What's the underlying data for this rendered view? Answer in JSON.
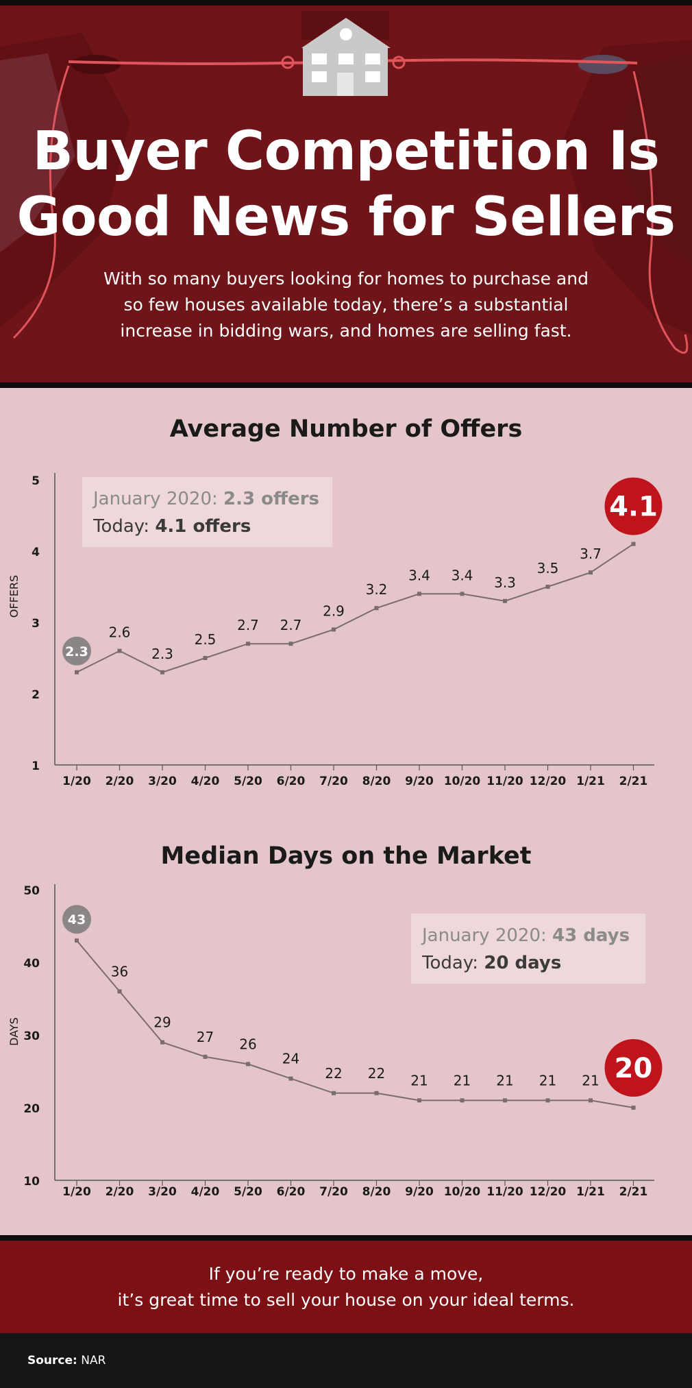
{
  "header": {
    "title_line1": "Buyer Competition Is",
    "title_line2": "Good News for Sellers",
    "subtitle_line1": "With so many buyers looking for homes to purchase and",
    "subtitle_line2": "so few houses available today, there’s a substantial",
    "subtitle_line3": "increase in bidding wars, and homes are selling fast."
  },
  "colors": {
    "hero_bg": "#6f1418",
    "panel_bg": "#e4c5ca",
    "accent_red": "#c0141c",
    "line_gray": "#7a6b6e",
    "badge_gray": "#8c8587",
    "footer_bg": "#7c1015"
  },
  "chart_data": [
    {
      "type": "line",
      "title": "Average Number of Offers",
      "ylabel": "OFFERS",
      "xlabel": "",
      "categories": [
        "1/20",
        "2/20",
        "3/20",
        "4/20",
        "5/20",
        "6/20",
        "7/20",
        "8/20",
        "9/20",
        "10/20",
        "11/20",
        "12/20",
        "1/21",
        "2/21"
      ],
      "values": [
        2.3,
        2.6,
        2.3,
        2.5,
        2.7,
        2.7,
        2.9,
        3.2,
        3.4,
        3.4,
        3.3,
        3.5,
        3.7,
        4.1
      ],
      "data_labels": [
        "2.3",
        "2.6",
        "2.3",
        "2.5",
        "2.7",
        "2.7",
        "2.9",
        "3.2",
        "3.4",
        "3.4",
        "3.3",
        "3.5",
        "3.7",
        "4.1"
      ],
      "ylim": [
        1,
        5
      ],
      "yticks": [
        1,
        2,
        3,
        4,
        5
      ],
      "grid": false,
      "callout": {
        "line1_label": "January 2020: ",
        "line1_value": "2.3 offers",
        "line2_label": "Today: ",
        "line2_value": "4.1 offers",
        "placement": "top-left"
      }
    },
    {
      "type": "line",
      "title": "Median Days on the Market",
      "ylabel": "DAYS",
      "xlabel": "",
      "categories": [
        "1/20",
        "2/20",
        "3/20",
        "4/20",
        "5/20",
        "6/20",
        "7/20",
        "8/20",
        "9/20",
        "10/20",
        "11/20",
        "12/20",
        "1/21",
        "2/21"
      ],
      "values": [
        43,
        36,
        29,
        27,
        26,
        24,
        22,
        22,
        21,
        21,
        21,
        21,
        21,
        20
      ],
      "data_labels": [
        "43",
        "36",
        "29",
        "27",
        "26",
        "24",
        "22",
        "22",
        "21",
        "21",
        "21",
        "21",
        "21",
        "20"
      ],
      "ylim": [
        10,
        50
      ],
      "yticks": [
        10,
        20,
        30,
        40,
        50
      ],
      "grid": false,
      "callout": {
        "line1_label": "January 2020: ",
        "line1_value": "43 days",
        "line2_label": "Today: ",
        "line2_value": "20 days",
        "placement": "top-right"
      }
    }
  ],
  "footer": {
    "line1": "If you’re ready to make a move,",
    "line2": "it’s great time to sell your house on your ideal terms."
  },
  "source": {
    "label": "Source:",
    "value": "NAR"
  }
}
